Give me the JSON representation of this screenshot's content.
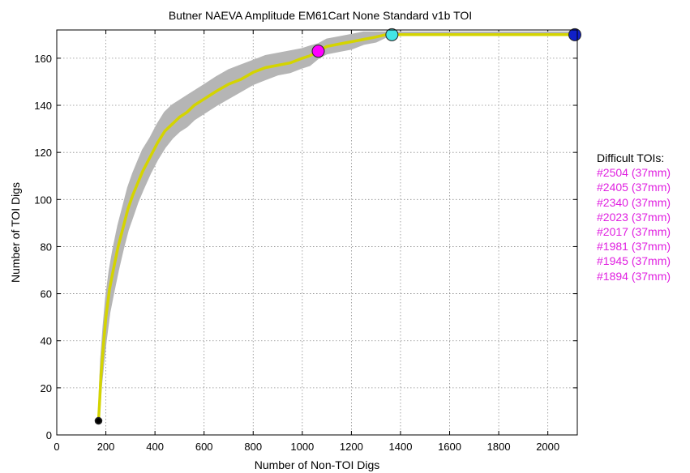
{
  "chart_data": {
    "type": "line",
    "title": "Butner NAEVA Amplitude EM61Cart None Standard v1b TOI",
    "xlabel": "Number of Non-TOI Digs",
    "ylabel": "Number of TOI Digs",
    "xlim": [
      0,
      2120
    ],
    "ylim": [
      0,
      172
    ],
    "xticks": [
      0,
      200,
      400,
      600,
      800,
      1000,
      1200,
      1400,
      1600,
      1800,
      2000
    ],
    "yticks": [
      0,
      20,
      40,
      60,
      80,
      100,
      120,
      140,
      160
    ],
    "grid": true,
    "colors": {
      "line": "#d4d400",
      "band": "#b5b5b5",
      "start_marker": "#000000",
      "marker_magenta": "#ff00ff",
      "marker_cyan": "#44e6e6",
      "marker_blue": "#1020c8"
    },
    "series": [
      {
        "x": [
          170,
          175,
          180,
          190,
          200,
          215,
          230,
          250,
          270,
          290,
          310,
          330,
          350,
          380,
          410,
          440,
          470,
          500,
          530,
          560,
          590,
          620,
          650,
          700,
          750,
          800,
          850,
          900,
          950,
          1000,
          1030,
          1065,
          1100,
          1150,
          1200,
          1250,
          1300,
          1340,
          1365,
          1400,
          1500,
          1600,
          1700,
          1800,
          1900,
          2000,
          2110
        ],
        "y": [
          6,
          15,
          25,
          38,
          50,
          62,
          70,
          80,
          88,
          96,
          102,
          107,
          112,
          118,
          124,
          129,
          132,
          135,
          137,
          140,
          142,
          144,
          146,
          149,
          151,
          154,
          156,
          157,
          158,
          160,
          161,
          163,
          165,
          166,
          167,
          168,
          169,
          170,
          170,
          170,
          170,
          170,
          170,
          170,
          170,
          170,
          170
        ],
        "lower": [
          6,
          12,
          20,
          30,
          40,
          52,
          60,
          70,
          79,
          87,
          93,
          99,
          104,
          111,
          117,
          122,
          126,
          129,
          131,
          134,
          136,
          138,
          140,
          143,
          146,
          149,
          151,
          153,
          154,
          156,
          157,
          160,
          162,
          163,
          164,
          166,
          167,
          169,
          170,
          170,
          170,
          170,
          170,
          170,
          170,
          170,
          170
        ],
        "upper": [
          6,
          20,
          32,
          46,
          58,
          70,
          79,
          89,
          97,
          105,
          111,
          116,
          121,
          126,
          132,
          137,
          140,
          142,
          144,
          146,
          148,
          150,
          152,
          155,
          157,
          159,
          161,
          162,
          163,
          164,
          165,
          166,
          168,
          169,
          170,
          171,
          171,
          171,
          171,
          171,
          171,
          171,
          171,
          171,
          171,
          171,
          171
        ]
      }
    ],
    "markers": [
      {
        "x": 170,
        "y": 6,
        "color": "start_marker",
        "size": "small"
      },
      {
        "x": 1065,
        "y": 163,
        "color": "marker_magenta",
        "size": "large"
      },
      {
        "x": 1365,
        "y": 170,
        "color": "marker_cyan",
        "size": "large"
      },
      {
        "x": 2110,
        "y": 170,
        "color": "marker_blue",
        "size": "large"
      }
    ]
  },
  "difficult_tois": {
    "title": "Difficult TOIs:",
    "items": [
      "#2504 (37mm)",
      "#2405 (37mm)",
      "#2340 (37mm)",
      "#2023 (37mm)",
      "#2017 (37mm)",
      "#1981 (37mm)",
      "#1945 (37mm)",
      "#1894 (37mm)"
    ]
  }
}
